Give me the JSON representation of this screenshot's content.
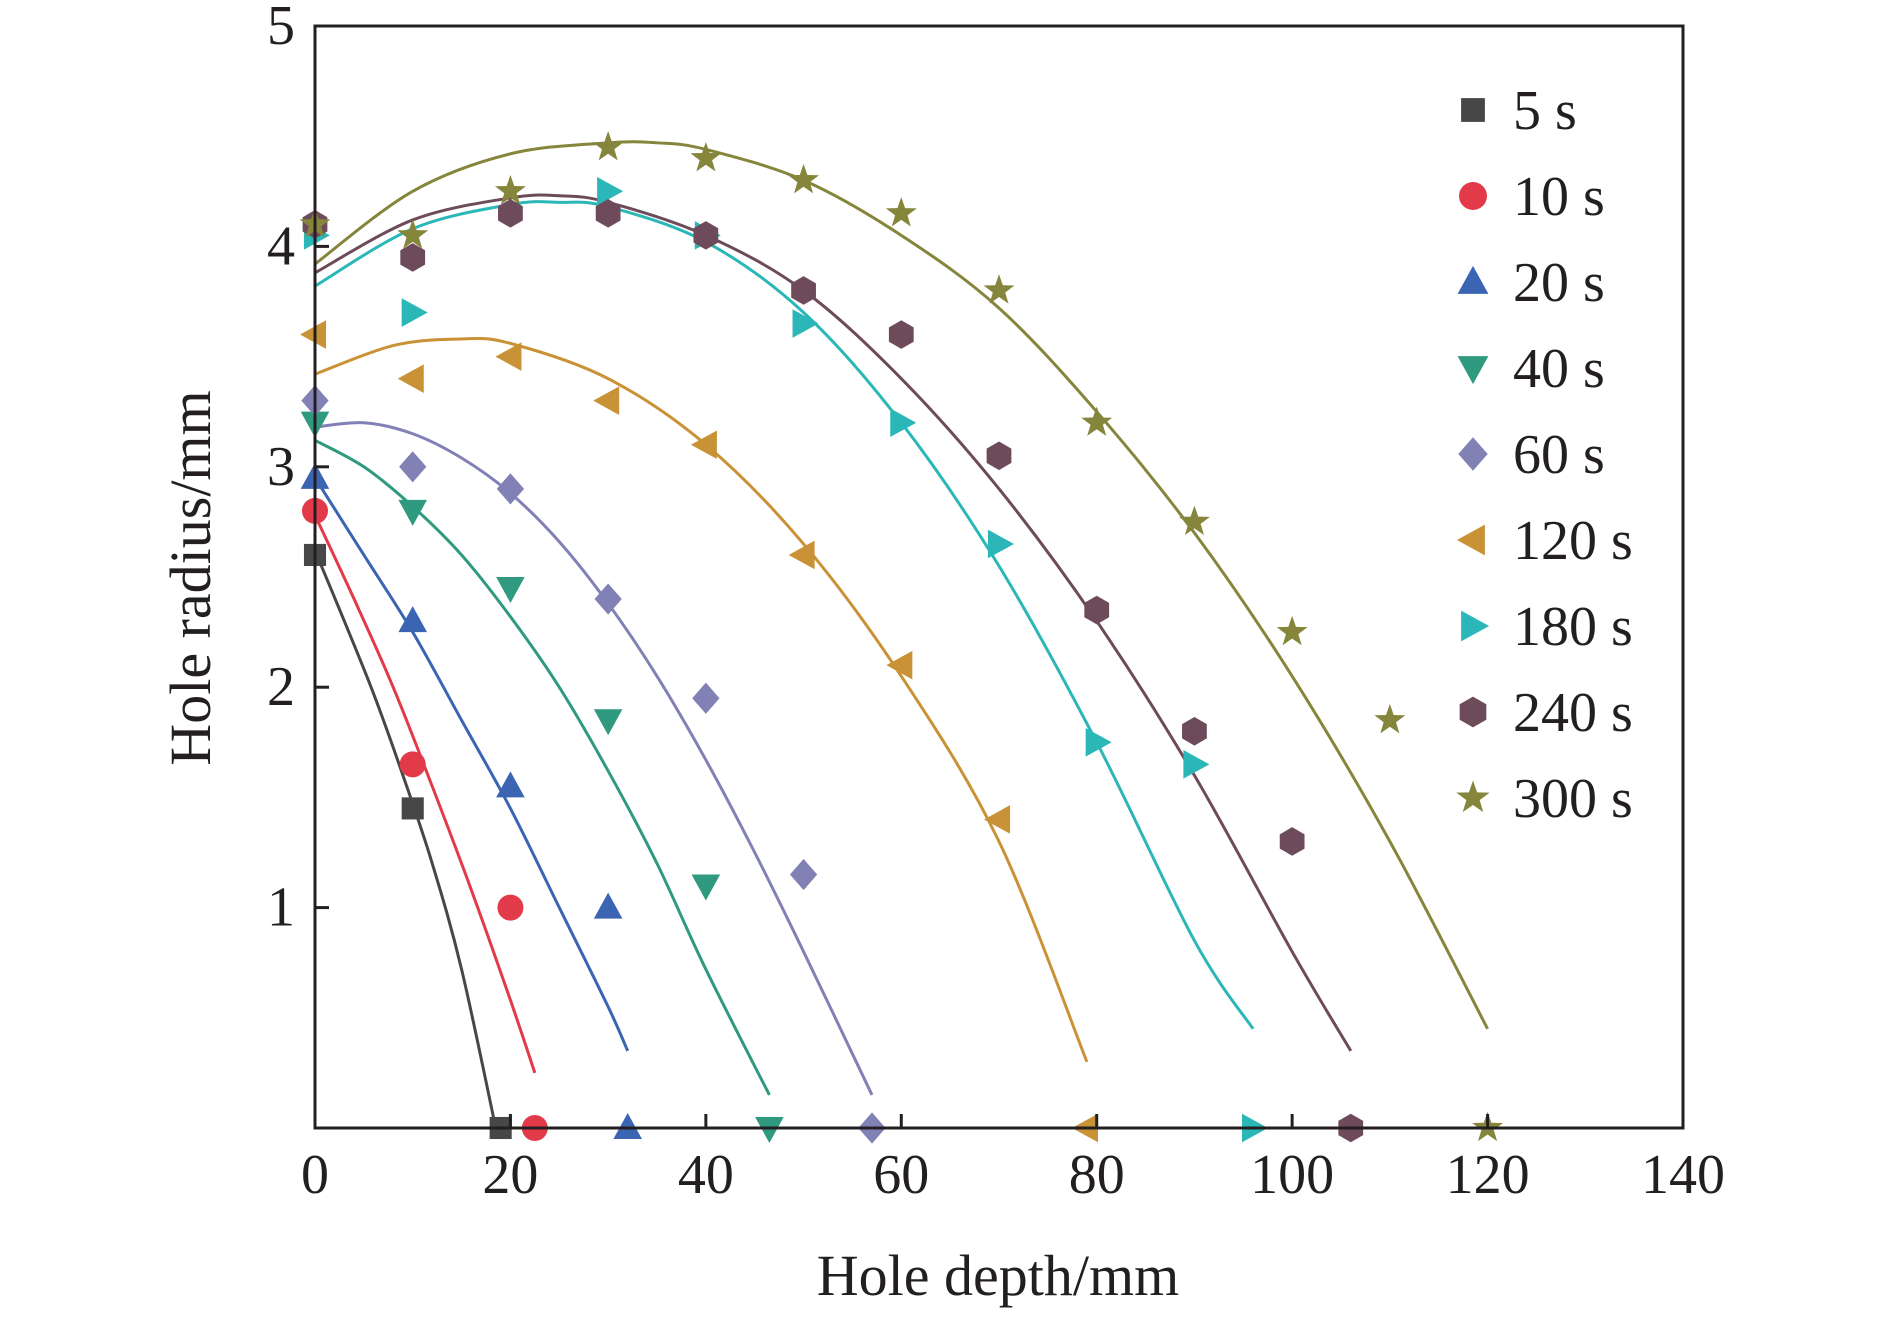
{
  "chart_data": {
    "type": "scatter",
    "title": "",
    "xlabel": "Hole depth/mm",
    "ylabel": "Hole radius/mm",
    "xlim": [
      0,
      140
    ],
    "ylim": [
      0,
      5
    ],
    "xticks": [
      0,
      20,
      40,
      60,
      80,
      100,
      120,
      140
    ],
    "yticks": [
      0,
      1,
      2,
      3,
      4,
      5
    ],
    "xtick_labels": [
      "0",
      "20",
      "40",
      "60",
      "80",
      "100",
      "120",
      "140"
    ],
    "ytick_labels": [
      "",
      "1",
      "2",
      "3",
      "4",
      "5"
    ],
    "grid": false,
    "legend_position": "top-right",
    "series": [
      {
        "name": "5 s",
        "marker": "square",
        "color": "#474747",
        "x": [
          0,
          10,
          19
        ],
        "y": [
          2.6,
          1.45,
          0.0
        ],
        "fit_line": {
          "x": [
            0,
            3,
            6,
            9,
            12,
            15,
            18.5
          ],
          "y": [
            2.62,
            2.3,
            1.97,
            1.6,
            1.2,
            0.72,
            0.0
          ]
        }
      },
      {
        "name": "10 s",
        "marker": "circle",
        "color": "#e33a4a",
        "x": [
          0,
          10,
          20,
          22.5
        ],
        "y": [
          2.8,
          1.65,
          1.0,
          0.0
        ],
        "fit_line": {
          "x": [
            0,
            4,
            8,
            12,
            16,
            20,
            22.5
          ],
          "y": [
            2.78,
            2.4,
            2.0,
            1.55,
            1.08,
            0.58,
            0.25
          ]
        }
      },
      {
        "name": "20 s",
        "marker": "triangle-up",
        "color": "#3b64b2",
        "x": [
          0,
          10,
          20,
          30,
          32
        ],
        "y": [
          2.95,
          2.3,
          1.55,
          1.0,
          0.0
        ],
        "fit_line": {
          "x": [
            0,
            5,
            10,
            15,
            20,
            25,
            30,
            32
          ],
          "y": [
            2.95,
            2.6,
            2.25,
            1.85,
            1.45,
            1.0,
            0.55,
            0.35
          ]
        }
      },
      {
        "name": "40 s",
        "marker": "triangle-down",
        "color": "#2f9a7f",
        "x": [
          0,
          10,
          20,
          30,
          40,
          46.5
        ],
        "y": [
          3.2,
          2.8,
          2.45,
          1.85,
          1.1,
          0.0
        ],
        "fit_line": {
          "x": [
            0,
            5,
            10,
            15,
            20,
            25,
            30,
            35,
            40,
            46.5
          ],
          "y": [
            3.12,
            3.0,
            2.82,
            2.6,
            2.32,
            2.0,
            1.62,
            1.2,
            0.72,
            0.15
          ]
        }
      },
      {
        "name": "60 s",
        "marker": "diamond",
        "color": "#8181b5",
        "x": [
          0,
          10,
          20,
          30,
          40,
          50,
          57
        ],
        "y": [
          3.3,
          3.0,
          2.9,
          2.4,
          1.95,
          1.15,
          0.0
        ],
        "fit_line": {
          "x": [
            0,
            5,
            10,
            15,
            20,
            25,
            30,
            35,
            40,
            45,
            50,
            57
          ],
          "y": [
            3.18,
            3.2,
            3.15,
            3.04,
            2.88,
            2.66,
            2.38,
            2.05,
            1.67,
            1.25,
            0.8,
            0.15
          ]
        }
      },
      {
        "name": "120 s",
        "marker": "triangle-left",
        "color": "#c99236",
        "x": [
          0,
          10,
          20,
          30,
          40,
          50,
          60,
          70,
          79
        ],
        "y": [
          3.6,
          3.4,
          3.5,
          3.3,
          3.1,
          2.6,
          2.1,
          1.4,
          0.0
        ],
        "fit_line": {
          "x": [
            0,
            8,
            15,
            20,
            30,
            40,
            50,
            60,
            70,
            79
          ],
          "y": [
            3.42,
            3.55,
            3.58,
            3.56,
            3.4,
            3.1,
            2.65,
            2.05,
            1.3,
            0.3
          ]
        }
      },
      {
        "name": "180 s",
        "marker": "triangle-right",
        "color": "#2bb7b7",
        "x": [
          0,
          10,
          30,
          40,
          50,
          60,
          70,
          80,
          90,
          96
        ],
        "y": [
          4.05,
          3.7,
          4.25,
          4.05,
          3.65,
          3.2,
          2.65,
          1.75,
          1.65,
          0.0
        ],
        "fit_line": {
          "x": [
            0,
            10,
            20,
            25,
            30,
            40,
            50,
            60,
            70,
            80,
            90,
            96
          ],
          "y": [
            3.82,
            4.08,
            4.19,
            4.2,
            4.18,
            4.02,
            3.7,
            3.2,
            2.55,
            1.75,
            0.85,
            0.45
          ]
        }
      },
      {
        "name": "240 s",
        "marker": "hexagon",
        "color": "#6e4b5a",
        "x": [
          0,
          10,
          20,
          30,
          40,
          50,
          60,
          70,
          80,
          90,
          100,
          106
        ],
        "y": [
          4.1,
          3.95,
          4.15,
          4.15,
          4.05,
          3.8,
          3.6,
          3.05,
          2.35,
          1.8,
          1.3,
          0.0
        ],
        "fit_line": {
          "x": [
            0,
            10,
            20,
            25,
            30,
            40,
            50,
            60,
            70,
            80,
            90,
            100,
            106
          ],
          "y": [
            3.88,
            4.12,
            4.22,
            4.23,
            4.2,
            4.05,
            3.8,
            3.4,
            2.9,
            2.3,
            1.6,
            0.8,
            0.35
          ]
        }
      },
      {
        "name": "300 s",
        "marker": "star",
        "color": "#85853b",
        "x": [
          0,
          10,
          20,
          30,
          40,
          50,
          60,
          70,
          80,
          90,
          100,
          110,
          120
        ],
        "y": [
          4.1,
          4.05,
          4.25,
          4.45,
          4.4,
          4.3,
          4.15,
          3.8,
          3.2,
          2.75,
          2.25,
          1.85,
          0.0
        ],
        "fit_line": {
          "x": [
            0,
            10,
            20,
            30,
            35,
            40,
            50,
            60,
            70,
            80,
            90,
            100,
            110,
            120
          ],
          "y": [
            3.92,
            4.25,
            4.42,
            4.47,
            4.47,
            4.44,
            4.3,
            4.05,
            3.72,
            3.25,
            2.7,
            2.05,
            1.3,
            0.45
          ]
        }
      }
    ]
  }
}
